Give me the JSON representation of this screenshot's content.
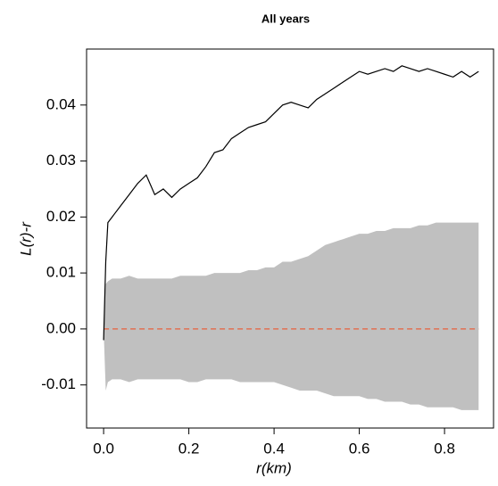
{
  "chart_data": {
    "type": "envelope-line",
    "title": "All years",
    "x_label": "r(km)",
    "y_label": "L(r)-r",
    "xlim": [
      -0.04,
      0.915
    ],
    "ylim": [
      -0.0177,
      0.05
    ],
    "xticks": [
      {
        "value": 0,
        "label": "0.0"
      },
      0.2,
      0.4,
      0.6,
      0.8
    ],
    "yticks": [
      -0.01,
      {
        "value": 0,
        "label": "0.00"
      },
      0.01,
      0.02,
      0.03,
      0.04
    ],
    "x": [
      0,
      0.005,
      0.01,
      0.02,
      0.04,
      0.06,
      0.08,
      0.1,
      0.12,
      0.14,
      0.16,
      0.18,
      0.2,
      0.22,
      0.24,
      0.26,
      0.28,
      0.3,
      0.32,
      0.34,
      0.36,
      0.38,
      0.4,
      0.42,
      0.44,
      0.46,
      0.48,
      0.5,
      0.52,
      0.54,
      0.56,
      0.58,
      0.6,
      0.62,
      0.64,
      0.66,
      0.68,
      0.7,
      0.72,
      0.74,
      0.76,
      0.78,
      0.8,
      0.82,
      0.84,
      0.86,
      0.88
    ],
    "line": {
      "color": "#000000",
      "values": [
        -0.002,
        0.012,
        0.019,
        0.02,
        0.022,
        0.024,
        0.026,
        0.0275,
        0.024,
        0.025,
        0.0235,
        0.025,
        0.026,
        0.027,
        0.029,
        0.0315,
        0.032,
        0.034,
        0.035,
        0.036,
        0.0365,
        0.037,
        0.0385,
        0.04,
        0.0405,
        0.04,
        0.0395,
        0.041,
        0.042,
        0.043,
        0.044,
        0.045,
        0.046,
        0.0455,
        0.046,
        0.0465,
        0.046,
        0.047,
        0.0465,
        0.046,
        0.0465,
        0.046,
        0.0455,
        0.045,
        0.046,
        0.045,
        0.046
      ]
    },
    "envelope": {
      "color": "#c0c0c0",
      "upper": [
        0,
        0.008,
        0.0085,
        0.009,
        0.009,
        0.0095,
        0.009,
        0.009,
        0.009,
        0.009,
        0.009,
        0.0095,
        0.0095,
        0.0095,
        0.0095,
        0.01,
        0.01,
        0.01,
        0.01,
        0.0105,
        0.0105,
        0.011,
        0.011,
        0.012,
        0.012,
        0.0125,
        0.013,
        0.014,
        0.015,
        0.0155,
        0.016,
        0.0165,
        0.017,
        0.017,
        0.0175,
        0.0175,
        0.018,
        0.018,
        0.018,
        0.0185,
        0.0185,
        0.019,
        0.019,
        0.019,
        0.019,
        0.019,
        0.019
      ],
      "lower": [
        0,
        -0.011,
        -0.0095,
        -0.009,
        -0.009,
        -0.0095,
        -0.009,
        -0.009,
        -0.009,
        -0.009,
        -0.009,
        -0.009,
        -0.0095,
        -0.0095,
        -0.009,
        -0.009,
        -0.009,
        -0.009,
        -0.0095,
        -0.0095,
        -0.0095,
        -0.0095,
        -0.0095,
        -0.01,
        -0.0105,
        -0.011,
        -0.011,
        -0.011,
        -0.0115,
        -0.012,
        -0.012,
        -0.012,
        -0.012,
        -0.0125,
        -0.0125,
        -0.013,
        -0.013,
        -0.013,
        -0.0135,
        -0.0135,
        -0.014,
        -0.014,
        -0.014,
        -0.014,
        -0.0145,
        -0.0145,
        -0.0145
      ]
    },
    "reference_line": {
      "value": 0,
      "color": "#e8603c",
      "dashed": true
    }
  }
}
